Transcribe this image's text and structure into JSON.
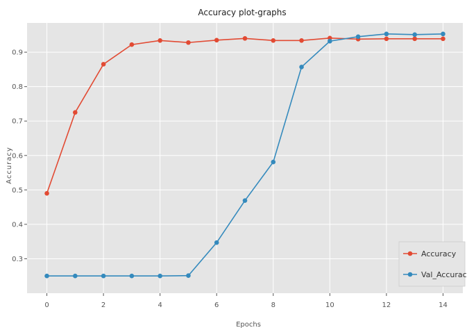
{
  "chart_data": {
    "type": "line",
    "title": "Accuracy plot-graphs",
    "xlabel": "Epochs",
    "ylabel": "Accuracy",
    "x": [
      0,
      1,
      2,
      3,
      4,
      5,
      6,
      7,
      8,
      9,
      10,
      11,
      12,
      13,
      14
    ],
    "xlim": [
      -0.7,
      14.7
    ],
    "ylim": [
      0.2,
      0.985
    ],
    "xticks": [
      0,
      2,
      4,
      6,
      8,
      10,
      12,
      14
    ],
    "yticks": [
      0.3,
      0.4,
      0.5,
      0.6,
      0.7,
      0.8,
      0.9
    ],
    "grid": true,
    "legend_position": "lower-right",
    "series": [
      {
        "name": "Accuracy",
        "color": "#e24a33",
        "values": [
          0.49,
          0.725,
          0.865,
          0.922,
          0.934,
          0.928,
          0.935,
          0.94,
          0.934,
          0.934,
          0.941,
          0.938,
          0.939,
          0.939,
          0.939
        ]
      },
      {
        "name": "Val_Accuracy",
        "color": "#348abd",
        "values": [
          0.25,
          0.25,
          0.25,
          0.25,
          0.25,
          0.251,
          0.347,
          0.469,
          0.581,
          0.857,
          0.932,
          0.945,
          0.953,
          0.951,
          0.953
        ]
      }
    ]
  },
  "style": {
    "plot_background": "#e5e5e5",
    "grid_color": "#ffffff"
  }
}
